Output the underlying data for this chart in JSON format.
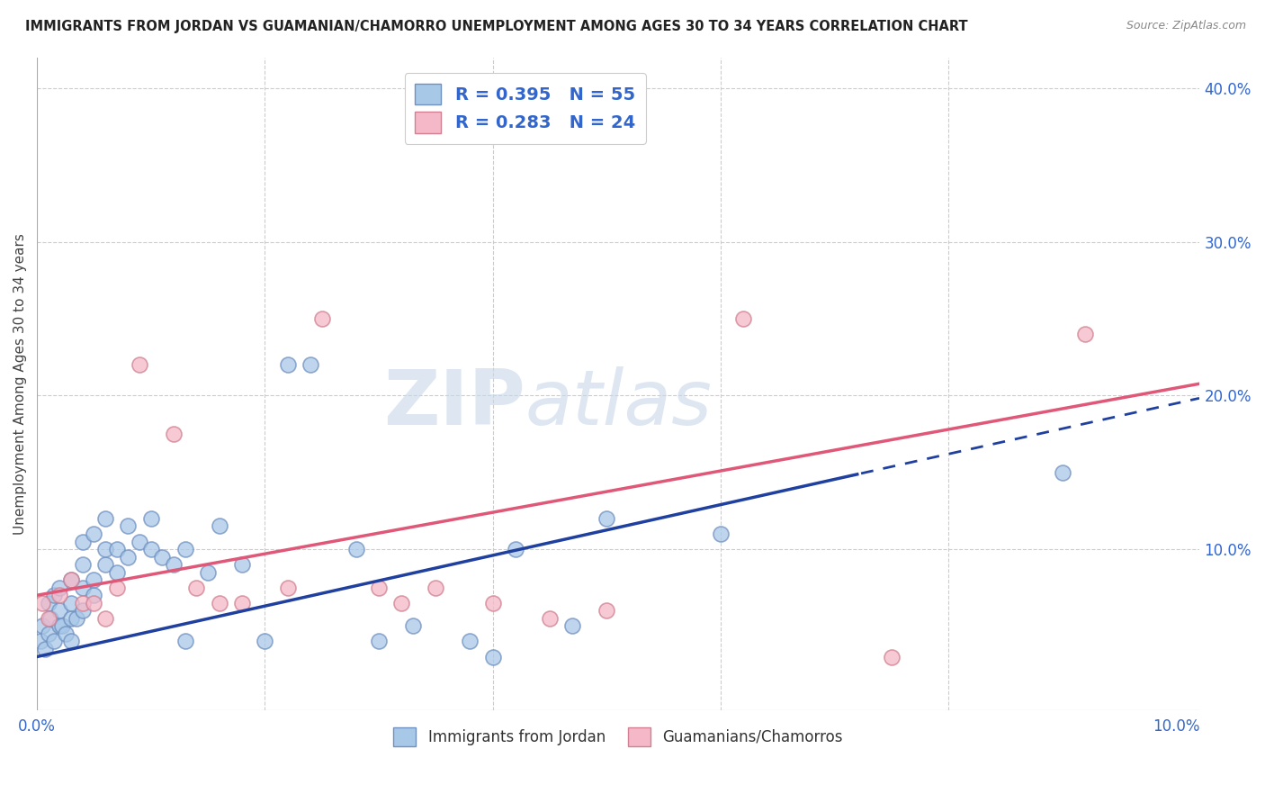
{
  "title": "IMMIGRANTS FROM JORDAN VS GUAMANIAN/CHAMORRO UNEMPLOYMENT AMONG AGES 30 TO 34 YEARS CORRELATION CHART",
  "source": "Source: ZipAtlas.com",
  "ylabel": "Unemployment Among Ages 30 to 34 years",
  "xlim": [
    0.0,
    0.102
  ],
  "ylim": [
    -0.005,
    0.42
  ],
  "blue_R": 0.395,
  "blue_N": 55,
  "pink_R": 0.283,
  "pink_N": 24,
  "legend1_label": "Immigrants from Jordan",
  "legend2_label": "Guamanians/Chamorros",
  "blue_color": "#a8c8e8",
  "pink_color": "#f4b8c8",
  "blue_edge_color": "#7090c0",
  "pink_edge_color": "#d08090",
  "blue_line_color": "#2040a0",
  "pink_line_color": "#e05878",
  "background_color": "#ffffff",
  "grid_color": "#cccccc",
  "title_color": "#222222",
  "source_color": "#888888",
  "watermark": "ZIPatlas",
  "blue_x": [
    0.0003,
    0.0005,
    0.0007,
    0.001,
    0.001,
    0.0012,
    0.0015,
    0.0015,
    0.002,
    0.002,
    0.002,
    0.0022,
    0.0025,
    0.003,
    0.003,
    0.003,
    0.003,
    0.0035,
    0.004,
    0.004,
    0.004,
    0.004,
    0.005,
    0.005,
    0.005,
    0.006,
    0.006,
    0.006,
    0.007,
    0.007,
    0.008,
    0.008,
    0.009,
    0.01,
    0.01,
    0.011,
    0.012,
    0.013,
    0.013,
    0.015,
    0.016,
    0.018,
    0.02,
    0.022,
    0.024,
    0.028,
    0.03,
    0.033,
    0.038,
    0.04,
    0.042,
    0.047,
    0.05,
    0.06,
    0.09
  ],
  "blue_y": [
    0.04,
    0.05,
    0.035,
    0.045,
    0.065,
    0.055,
    0.04,
    0.07,
    0.05,
    0.06,
    0.075,
    0.05,
    0.045,
    0.04,
    0.055,
    0.065,
    0.08,
    0.055,
    0.06,
    0.075,
    0.09,
    0.105,
    0.07,
    0.08,
    0.11,
    0.09,
    0.1,
    0.12,
    0.085,
    0.1,
    0.095,
    0.115,
    0.105,
    0.1,
    0.12,
    0.095,
    0.09,
    0.04,
    0.1,
    0.085,
    0.115,
    0.09,
    0.04,
    0.22,
    0.22,
    0.1,
    0.04,
    0.05,
    0.04,
    0.03,
    0.1,
    0.05,
    0.12,
    0.11,
    0.15
  ],
  "pink_x": [
    0.0005,
    0.001,
    0.002,
    0.003,
    0.004,
    0.005,
    0.006,
    0.007,
    0.009,
    0.012,
    0.014,
    0.016,
    0.018,
    0.022,
    0.025,
    0.03,
    0.032,
    0.035,
    0.04,
    0.045,
    0.05,
    0.062,
    0.075,
    0.092
  ],
  "pink_y": [
    0.065,
    0.055,
    0.07,
    0.08,
    0.065,
    0.065,
    0.055,
    0.075,
    0.22,
    0.175,
    0.075,
    0.065,
    0.065,
    0.075,
    0.25,
    0.075,
    0.065,
    0.075,
    0.065,
    0.055,
    0.06,
    0.25,
    0.03,
    0.24
  ],
  "blue_line_intercept": 0.03,
  "blue_line_slope": 1.65,
  "pink_line_intercept": 0.07,
  "pink_line_slope": 1.35
}
